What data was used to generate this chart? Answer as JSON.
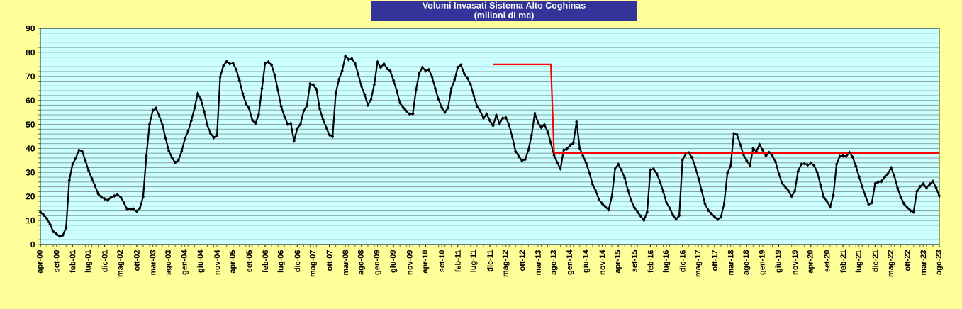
{
  "chart_data": {
    "type": "line",
    "title": "Volumi Invasati Sistema Alto Coghinas",
    "subtitle": "(milioni di mc)",
    "categories": [
      "apr-00",
      null,
      null,
      null,
      null,
      "set-00",
      null,
      null,
      null,
      null,
      "feb-01",
      null,
      null,
      null,
      null,
      "lug-01",
      null,
      null,
      null,
      null,
      "dic-01",
      null,
      null,
      null,
      null,
      "mag-02",
      null,
      null,
      null,
      null,
      "ott-02",
      null,
      null,
      null,
      null,
      "mar-03",
      null,
      null,
      null,
      null,
      "ago-03",
      null,
      null,
      null,
      null,
      "gen-04",
      null,
      null,
      null,
      null,
      "giu-04",
      null,
      null,
      null,
      null,
      "nov-04",
      null,
      null,
      null,
      null,
      "apr-05",
      null,
      null,
      null,
      null,
      "set-05",
      null,
      null,
      null,
      null,
      "feb-06",
      null,
      null,
      null,
      null,
      "lug-06",
      null,
      null,
      null,
      null,
      "dic-06",
      null,
      null,
      null,
      null,
      "mag-07",
      null,
      null,
      null,
      null,
      "ott-07",
      null,
      null,
      null,
      null,
      "mar-08",
      null,
      null,
      null,
      null,
      "ago-08",
      null,
      null,
      null,
      null,
      "gen-09",
      null,
      null,
      null,
      null,
      "giu-09",
      null,
      null,
      null,
      null,
      "nov-09",
      null,
      null,
      null,
      null,
      "apr-10",
      null,
      null,
      null,
      null,
      "set-10",
      null,
      null,
      null,
      null,
      "feb-11",
      null,
      null,
      null,
      null,
      "lug-11",
      null,
      null,
      null,
      null,
      "dic-11",
      null,
      null,
      null,
      null,
      "mag-12",
      null,
      null,
      null,
      null,
      "ott-12",
      null,
      null,
      null,
      null,
      "mar-13",
      null,
      null,
      null,
      null,
      "ago-13",
      null,
      null,
      null,
      null,
      "gen-14",
      null,
      null,
      null,
      null,
      "giu-14",
      null,
      null,
      null,
      null,
      "nov-14",
      null,
      null,
      null,
      null,
      "apr-15",
      null,
      null,
      null,
      null,
      "set-15",
      null,
      null,
      null,
      null,
      "feb-16",
      null,
      null,
      null,
      null,
      "lug-16",
      null,
      null,
      null,
      null,
      "dic-16",
      null,
      null,
      null,
      null,
      "mag-17",
      null,
      null,
      null,
      null,
      "ott-17",
      null,
      null,
      null,
      null,
      "mar-18",
      null,
      null,
      null,
      null,
      "ago-18",
      null,
      null,
      null,
      null,
      "gen-19",
      null,
      null,
      null,
      null,
      "giu-19",
      null,
      null,
      null,
      null,
      "nov-19",
      null,
      null,
      null,
      null,
      "apr-20",
      null,
      null,
      null,
      null,
      "set-20",
      null,
      null,
      null,
      null,
      "feb-21",
      null,
      null,
      null,
      null,
      "lug-21",
      null,
      null,
      null,
      null,
      "dic-21",
      null,
      null,
      null,
      null,
      "mag-22",
      null,
      null,
      null,
      null,
      "ott-22",
      null,
      null,
      null,
      null,
      "mar-23",
      null,
      null,
      null,
      null,
      "ago-23"
    ],
    "series": [
      {
        "color": "#000000",
        "marker": "diamond",
        "values": [
          13.5,
          12.3,
          10.8,
          8.4,
          5.4,
          4.4,
          3.4,
          3.9,
          7,
          26.8,
          33.4,
          35.9,
          39.3,
          38.8,
          34.9,
          30.8,
          27.5,
          24.4,
          21.1,
          19.7,
          19,
          18.4,
          19.7,
          20.2,
          20.8,
          19.7,
          17.4,
          14.7,
          14.7,
          14.7,
          13.8,
          15.2,
          19.9,
          36.9,
          50.1,
          55.8,
          56.7,
          53.6,
          49.9,
          44.2,
          39,
          36.1,
          34.1,
          35.1,
          38.8,
          44,
          47.2,
          51.6,
          56.7,
          62.9,
          60.4,
          55.4,
          49.7,
          46.2,
          44.5,
          45.4,
          69.8,
          74.4,
          76.2,
          75.2,
          75.4,
          72.8,
          68.3,
          62.9,
          58.7,
          56.7,
          51.8,
          50.4,
          54.1,
          64.9,
          75.4,
          76,
          74.7,
          70.5,
          64.1,
          57.5,
          53.4,
          50.1,
          50.4,
          43.1,
          48.2,
          50.1,
          55.6,
          57.7,
          66.9,
          66.4,
          64.6,
          56.5,
          52.1,
          48.7,
          45.7,
          44.9,
          62.9,
          68.8,
          72.3,
          78.4,
          77,
          77.4,
          75.4,
          70.8,
          65.9,
          62.4,
          58,
          60.5,
          66.6,
          76,
          73.7,
          75.2,
          73.3,
          72.1,
          68.3,
          63.9,
          59,
          57,
          55.4,
          54.3,
          54.4,
          64.4,
          71.3,
          73.7,
          72.3,
          72.8,
          69.8,
          64.9,
          60.5,
          57,
          55.1,
          57,
          64.9,
          68.5,
          73.7,
          74.7,
          71.1,
          69.3,
          66.6,
          61.9,
          57.5,
          55.6,
          52.6,
          54.3,
          51.6,
          49.5,
          53.8,
          50.3,
          52.6,
          52.8,
          49.7,
          44.7,
          38.8,
          36.7,
          34.9,
          35.4,
          39.3,
          45.5,
          54.6,
          50.8,
          48.7,
          49.9,
          46.9,
          42.3,
          37.1,
          34.1,
          31.5,
          39.3,
          39.8,
          41.3,
          42.3,
          51.1,
          40,
          36.9,
          33.9,
          29.8,
          25.1,
          22.3,
          18.7,
          17,
          15.7,
          14.5,
          20,
          31.5,
          33.4,
          31,
          27.7,
          22.6,
          18.4,
          15.4,
          13.5,
          11.8,
          10.1,
          13.5,
          31,
          31.5,
          29.5,
          26.1,
          22.1,
          17.4,
          15.2,
          12.3,
          10.5,
          12.1,
          35.1,
          37.7,
          38.1,
          36.1,
          32.2,
          27.5,
          22.3,
          17,
          14.3,
          12.8,
          11.5,
          10.5,
          11.5,
          17.2,
          29.8,
          32.7,
          46.2,
          45.7,
          41.6,
          37.4,
          34.9,
          32.9,
          40,
          38.8,
          41.6,
          39.3,
          36.9,
          38.3,
          36.9,
          34.4,
          29.5,
          25.6,
          24,
          22.3,
          20,
          22.3,
          30.5,
          33.4,
          33.7,
          33.1,
          33.9,
          32.9,
          30,
          24.9,
          19.7,
          18,
          15.7,
          20.6,
          33.4,
          36.7,
          36.9,
          36.7,
          38.3,
          36.4,
          32.7,
          28.2,
          24.1,
          20.2,
          16.7,
          17.4,
          25.3,
          26.1,
          26.3,
          28,
          29.5,
          32,
          28.5,
          23.6,
          19.7,
          17,
          15.4,
          14.1,
          13.5,
          22.1,
          24.1,
          25.3,
          23.6,
          25.1,
          26.3,
          23.6,
          20.2
        ]
      },
      {
        "color": "#ff0000",
        "marker": "none",
        "values": [
          null,
          null,
          null,
          null,
          null,
          null,
          null,
          null,
          null,
          null,
          null,
          null,
          null,
          null,
          null,
          null,
          null,
          null,
          null,
          null,
          null,
          null,
          null,
          null,
          null,
          null,
          null,
          null,
          null,
          null,
          null,
          null,
          null,
          null,
          null,
          null,
          null,
          null,
          null,
          null,
          null,
          null,
          null,
          null,
          null,
          null,
          null,
          null,
          null,
          null,
          null,
          null,
          null,
          null,
          null,
          null,
          null,
          null,
          null,
          null,
          null,
          null,
          null,
          null,
          null,
          null,
          null,
          null,
          null,
          null,
          null,
          null,
          null,
          null,
          null,
          null,
          null,
          null,
          null,
          null,
          null,
          null,
          null,
          null,
          null,
          null,
          null,
          null,
          null,
          null,
          null,
          null,
          null,
          null,
          null,
          null,
          null,
          null,
          null,
          null,
          null,
          null,
          null,
          null,
          null,
          null,
          null,
          null,
          null,
          null,
          null,
          null,
          null,
          null,
          null,
          null,
          null,
          null,
          null,
          null,
          null,
          null,
          null,
          null,
          null,
          null,
          null,
          null,
          null,
          null,
          null,
          null,
          null,
          null,
          null,
          null,
          null,
          null,
          null,
          null,
          null,
          75,
          75,
          75,
          75,
          75,
          75,
          75,
          75,
          75,
          75,
          75,
          75,
          75,
          75,
          75,
          75,
          75,
          75,
          75,
          38,
          38,
          38,
          38,
          38,
          38,
          38,
          38,
          38,
          38,
          38,
          38,
          38,
          38,
          38,
          38,
          38,
          38,
          38,
          38,
          38,
          38,
          38,
          38,
          38,
          38,
          38,
          38,
          38,
          38,
          38,
          38,
          38,
          38,
          38,
          38,
          38,
          38,
          38,
          38,
          38,
          38,
          38,
          38,
          38,
          38,
          38,
          38,
          38,
          38,
          38,
          38,
          38,
          38,
          38,
          38,
          38,
          38,
          38,
          38,
          38,
          38,
          38,
          38,
          38,
          38,
          38,
          38,
          38,
          38,
          38,
          38,
          38,
          38,
          38,
          38,
          38,
          38,
          38,
          38,
          38,
          38,
          38,
          38,
          38,
          38,
          38,
          38,
          38,
          38,
          38,
          38,
          38,
          38,
          38,
          38,
          38,
          38,
          38,
          38,
          38,
          38,
          38,
          38,
          38,
          38,
          38,
          38,
          38,
          38,
          38,
          38,
          38,
          38,
          38,
          38,
          38,
          38,
          38,
          38,
          38
        ]
      }
    ],
    "ylim": [
      0,
      90
    ],
    "yticks": [
      0,
      10,
      20,
      30,
      40,
      50,
      60,
      70,
      80,
      90
    ],
    "grid": "y",
    "line_style": "solid"
  }
}
